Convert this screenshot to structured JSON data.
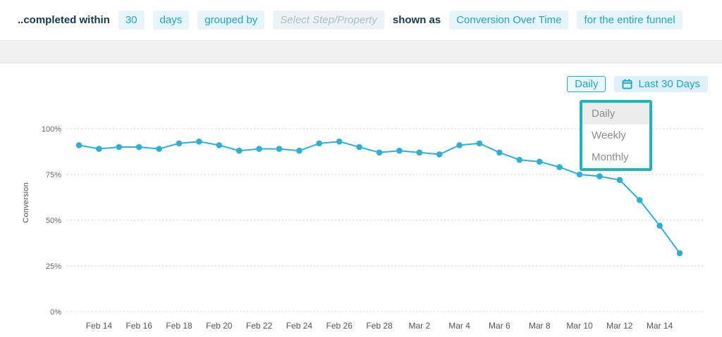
{
  "toolbar": {
    "completed_within_label": "..completed within",
    "window_value": "30",
    "window_unit": "days",
    "grouped_by_label": "grouped by",
    "group_placeholder": "Select Step/Property",
    "shown_as_label": "shown as",
    "display_type": "Conversion Over Time",
    "scope": "for the entire funnel"
  },
  "controls": {
    "interval": "Daily",
    "date_range": "Last 30 Days",
    "date_range_icon": "calendar-icon"
  },
  "interval_dropdown": {
    "items": [
      "Daily",
      "Weekly",
      "Monthly"
    ],
    "selected": "Daily"
  },
  "colors": {
    "accent_teal": "#1ba7c9",
    "chip_background": "#e7f5fa",
    "series_line": "#2eafd3",
    "highlight_border": "#1db4bc",
    "dark_label": "#15394e"
  },
  "chart_data": {
    "type": "line",
    "title": "",
    "xlabel": "",
    "ylabel": "Conversion",
    "ylim": [
      0,
      100
    ],
    "grid": "dotted-horizontal",
    "y_ticks": [
      0,
      25,
      50,
      75,
      100
    ],
    "y_tick_labels": [
      "0%",
      "25%",
      "50%",
      "75%",
      "100%"
    ],
    "x_tick_labels": [
      "Feb 14",
      "Feb 16",
      "Feb 18",
      "Feb 20",
      "Feb 22",
      "Feb 24",
      "Feb 26",
      "Feb 28",
      "Mar 2",
      "Mar 4",
      "Mar 6",
      "Mar 8",
      "Mar 10",
      "Mar 12",
      "Mar 14"
    ],
    "x": [
      "Feb 13",
      "Feb 14",
      "Feb 15",
      "Feb 16",
      "Feb 17",
      "Feb 18",
      "Feb 19",
      "Feb 20",
      "Feb 21",
      "Feb 22",
      "Feb 23",
      "Feb 24",
      "Feb 25",
      "Feb 26",
      "Feb 27",
      "Feb 28",
      "Mar 1",
      "Mar 2",
      "Mar 3",
      "Mar 4",
      "Mar 5",
      "Mar 6",
      "Mar 7",
      "Mar 8",
      "Mar 9",
      "Mar 10",
      "Mar 11",
      "Mar 12",
      "Mar 13",
      "Mar 14",
      "Mar 15"
    ],
    "series": [
      {
        "name": "Conversion",
        "values": [
          91,
          89,
          90,
          90,
          89,
          92,
          93,
          91,
          88,
          89,
          89,
          88,
          92,
          93,
          90,
          87,
          88,
          87,
          86,
          91,
          92,
          87,
          83,
          82,
          79,
          75,
          74,
          72,
          61,
          47,
          32
        ]
      }
    ]
  }
}
